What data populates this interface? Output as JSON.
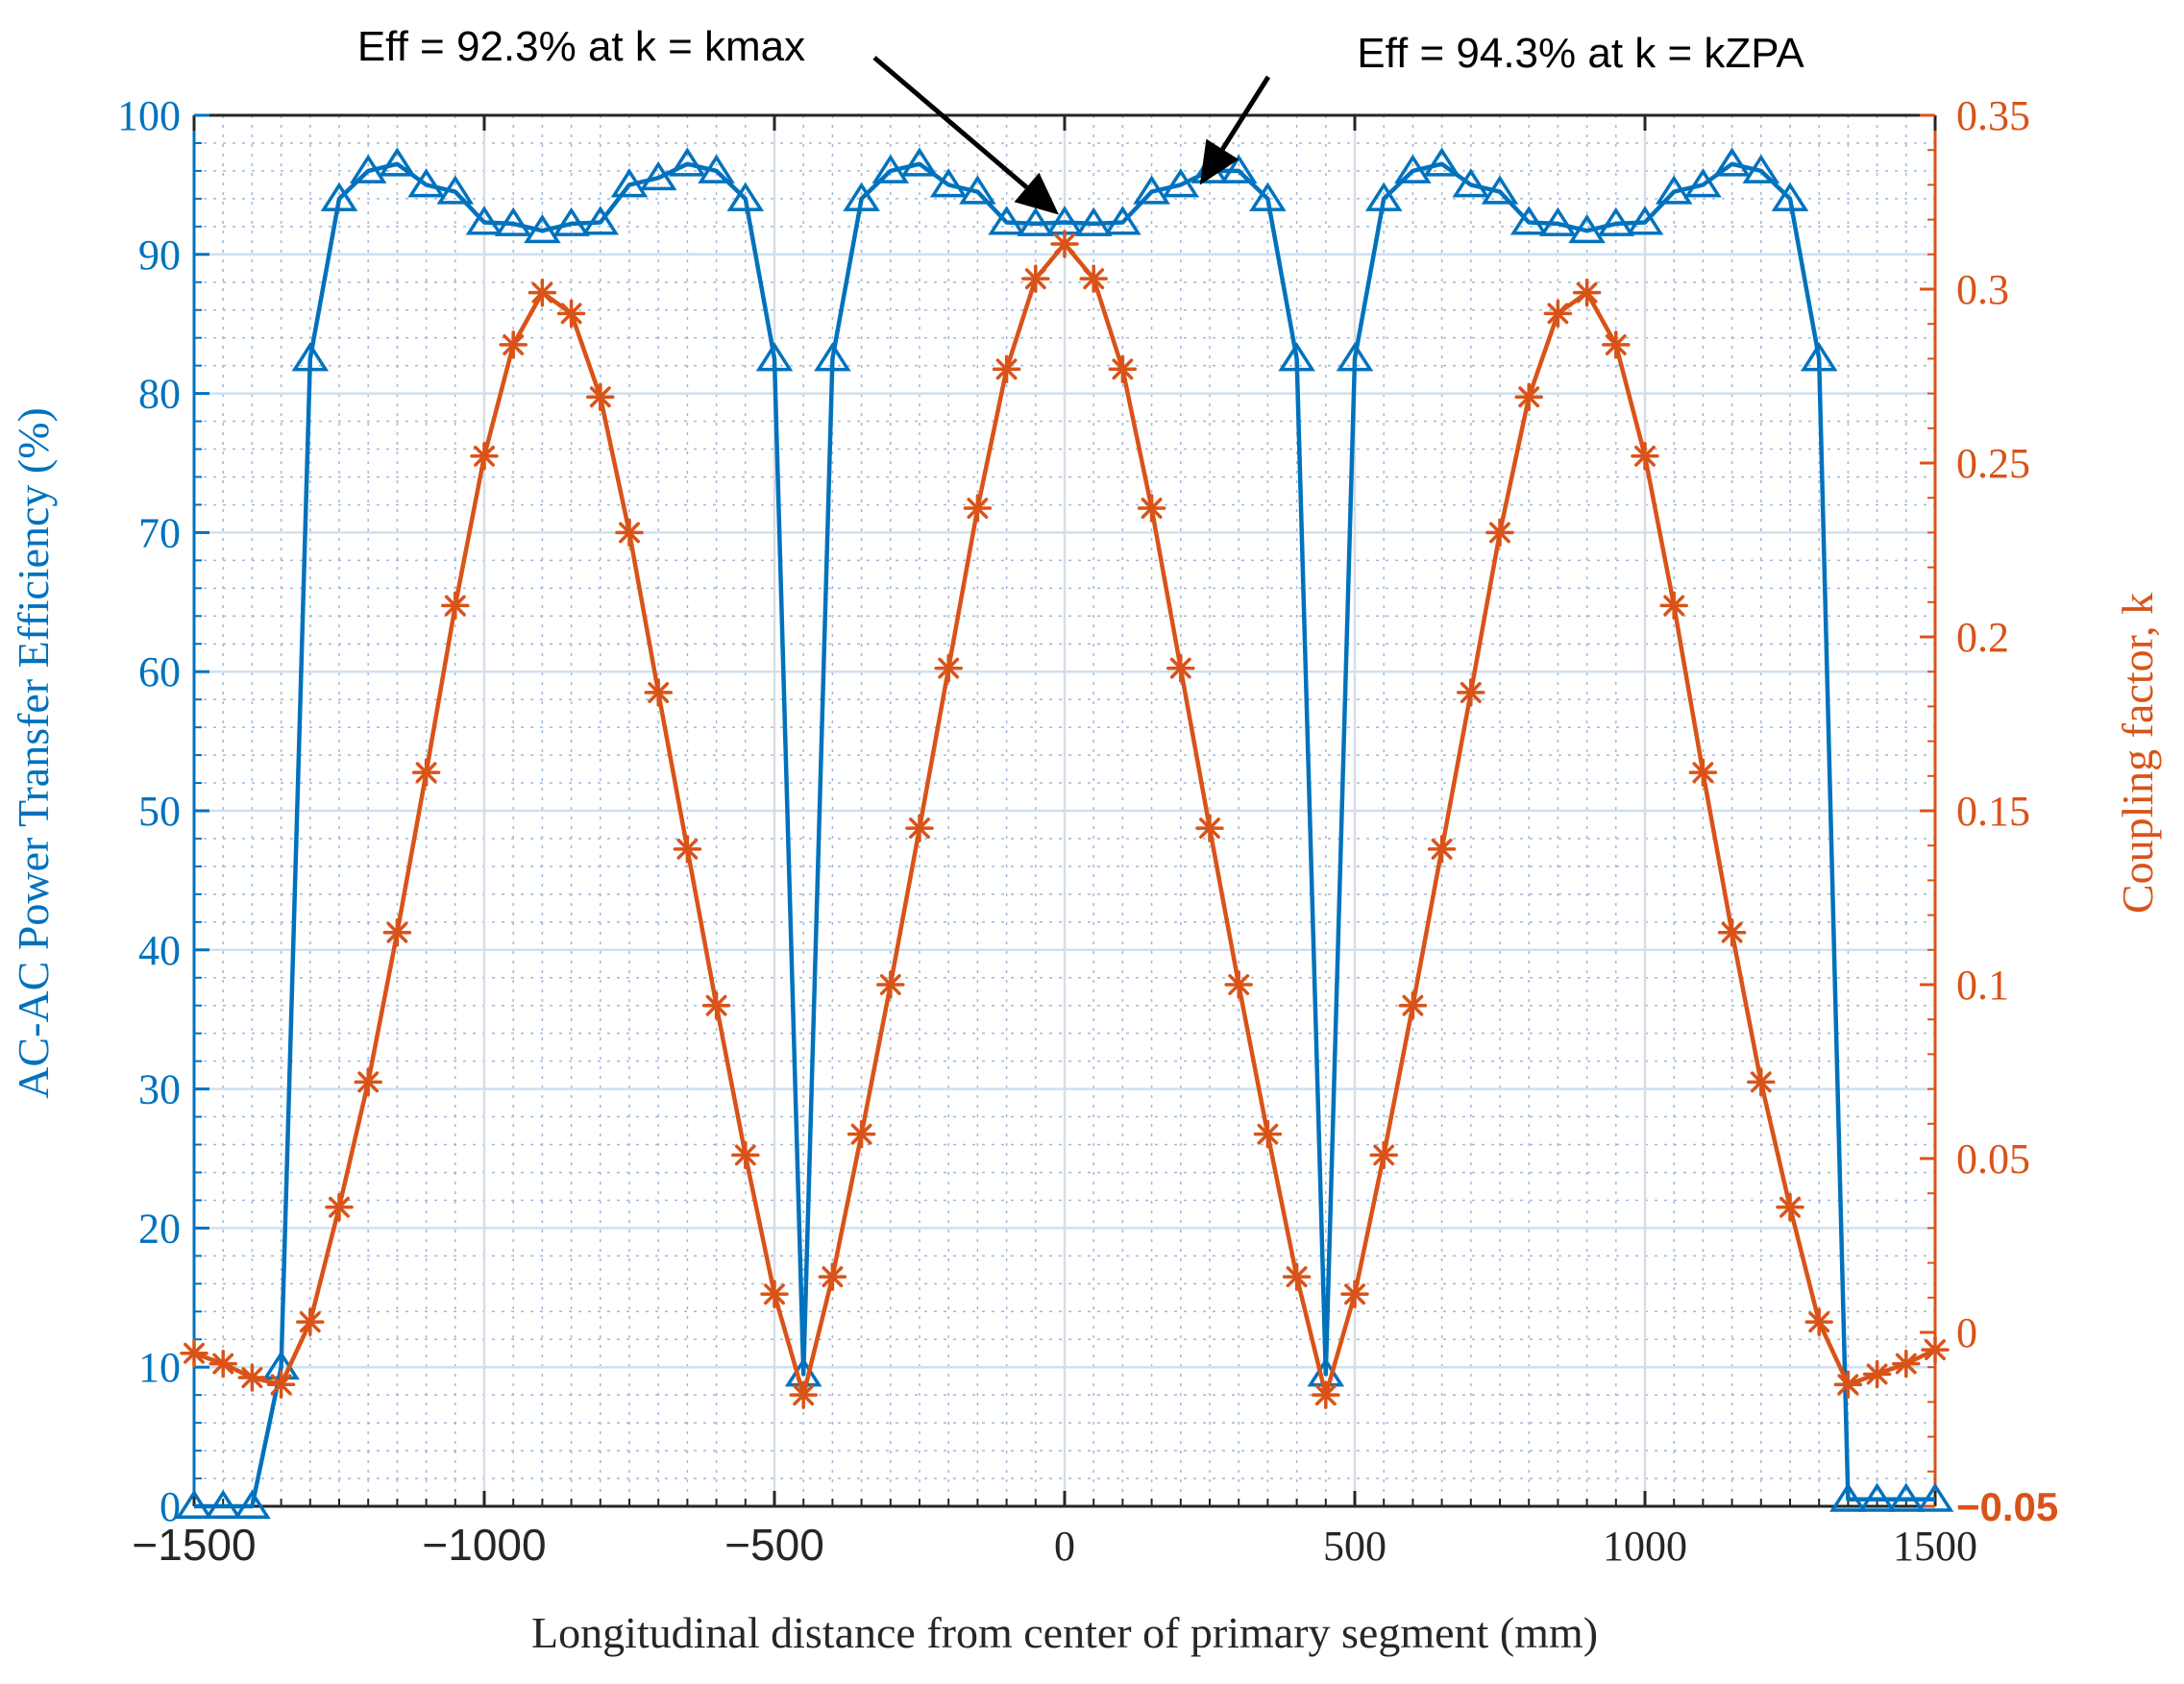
{
  "chart_data": {
    "type": "line",
    "xlabel": "Longitudinal distance from center of primary segment (mm)",
    "x_range": [
      -1500,
      1500
    ],
    "x_ticks": [
      -1500,
      -1000,
      -500,
      0,
      500,
      1000,
      1500
    ],
    "x_tick_labels": [
      "−1500",
      "−1000",
      "−500",
      "0",
      "500",
      "1000",
      "1500"
    ],
    "y_left": {
      "label": "AC-AC Power Transfer Efficiency (%)",
      "range": [
        0,
        100
      ],
      "ticks": [
        0,
        10,
        20,
        30,
        40,
        50,
        60,
        70,
        80,
        90,
        100
      ],
      "tick_labels": [
        "0",
        "10",
        "20",
        "30",
        "40",
        "50",
        "60",
        "70",
        "80",
        "90",
        "100"
      ],
      "color": "#0072BD"
    },
    "y_right": {
      "label": "Coupling factor, k",
      "range": [
        -0.05,
        0.35
      ],
      "ticks": [
        -0.05,
        0,
        0.05,
        0.1,
        0.15,
        0.2,
        0.25,
        0.3,
        0.35
      ],
      "tick_labels": [
        "−0.05",
        "0",
        "0.05",
        "0.1",
        "0.15",
        "0.2",
        "0.25",
        "0.3",
        "0.35"
      ],
      "color": "#D95319"
    },
    "grid": true,
    "minor_grid": true,
    "series": [
      {
        "name": "Efficiency",
        "axis": "left",
        "marker": "triangle",
        "color": "#0072BD",
        "x": [
          -1500,
          -1450,
          -1400,
          -1350,
          -1300,
          -1250,
          -1200,
          -1150,
          -1100,
          -1050,
          -1000,
          -950,
          -900,
          -850,
          -800,
          -750,
          -700,
          -650,
          -600,
          -550,
          -500,
          -450,
          -400,
          -350,
          -300,
          -250,
          -200,
          -150,
          -100,
          -50,
          0,
          50,
          100,
          150,
          200,
          250,
          300,
          350,
          400,
          450,
          500,
          550,
          600,
          650,
          700,
          750,
          800,
          850,
          900,
          950,
          1000,
          1050,
          1100,
          1150,
          1200,
          1250,
          1300,
          1350,
          1400,
          1450,
          1500
        ],
        "y": [
          0,
          0,
          0,
          10,
          82.5,
          94,
          96,
          96.5,
          95,
          94.5,
          92.3,
          92.2,
          91.7,
          92.2,
          92.3,
          95,
          95.5,
          96.5,
          96,
          94,
          82.5,
          9.5,
          82.5,
          94,
          96,
          96.5,
          95,
          94.5,
          92.3,
          92.2,
          92.3,
          92.2,
          92.3,
          94.5,
          95,
          96,
          96,
          94,
          82.5,
          9.5,
          82.5,
          94,
          96,
          96.5,
          95,
          94.5,
          92.3,
          92.2,
          91.7,
          92.2,
          92.3,
          94.5,
          95,
          96.5,
          96,
          94,
          82.5,
          0.5,
          0.5,
          0.5,
          0.5
        ]
      },
      {
        "name": "Coupling factor",
        "axis": "right",
        "marker": "asterisk",
        "color": "#D95319",
        "x": [
          -1500,
          -1450,
          -1400,
          -1350,
          -1300,
          -1250,
          -1200,
          -1150,
          -1100,
          -1050,
          -1000,
          -950,
          -900,
          -850,
          -800,
          -750,
          -700,
          -650,
          -600,
          -550,
          -500,
          -450,
          -400,
          -350,
          -300,
          -250,
          -200,
          -150,
          -100,
          -50,
          0,
          50,
          100,
          150,
          200,
          250,
          300,
          350,
          400,
          450,
          500,
          550,
          600,
          650,
          700,
          750,
          800,
          850,
          900,
          950,
          1000,
          1050,
          1100,
          1150,
          1200,
          1250,
          1300,
          1350,
          1400,
          1450,
          1500
        ],
        "y": [
          -0.006,
          -0.009,
          -0.013,
          -0.015,
          0.003,
          0.036,
          0.072,
          0.115,
          0.161,
          0.209,
          0.252,
          0.284,
          0.299,
          0.293,
          0.269,
          0.23,
          0.184,
          0.139,
          0.094,
          0.051,
          0.011,
          -0.018,
          0.016,
          0.057,
          0.1,
          0.145,
          0.191,
          0.237,
          0.277,
          0.303,
          0.313,
          0.303,
          0.277,
          0.237,
          0.191,
          0.145,
          0.1,
          0.057,
          0.016,
          -0.018,
          0.011,
          0.051,
          0.094,
          0.139,
          0.184,
          0.23,
          0.269,
          0.293,
          0.299,
          0.284,
          0.252,
          0.209,
          0.161,
          0.115,
          0.072,
          0.036,
          0.003,
          -0.015,
          -0.012,
          -0.009,
          -0.005
        ]
      }
    ],
    "annotations": [
      {
        "text": "Eff = 92.3% at k = kmax",
        "points_to_x": 0,
        "points_to_y": 92.3
      },
      {
        "text": "Eff = 94.3% at k = kZPA",
        "points_to_x": 200,
        "points_to_y": 94.3
      }
    ]
  }
}
